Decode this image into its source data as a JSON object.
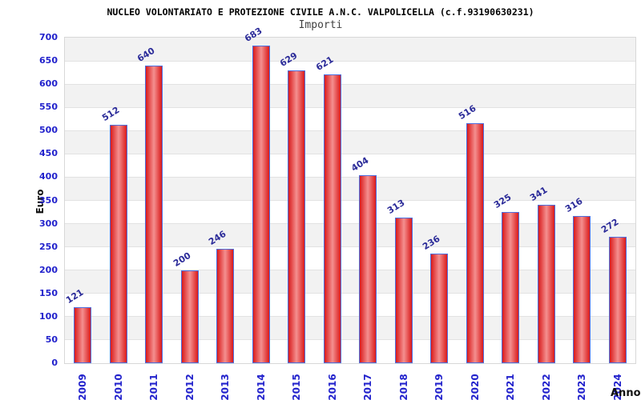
{
  "chart_data": {
    "type": "bar",
    "title": "NUCLEO VOLONTARIATO E PROTEZIONE CIVILE A.N.C. VALPOLICELLA (c.f.93190630231)",
    "subtitle": "Importi",
    "xlabel": "Anno",
    "ylabel": "Euro",
    "categories": [
      "2009",
      "2010",
      "2011",
      "2012",
      "2013",
      "2014",
      "2015",
      "2016",
      "2017",
      "2018",
      "2019",
      "2020",
      "2021",
      "2022",
      "2023",
      "2024"
    ],
    "values": [
      121,
      512,
      640,
      200,
      246,
      683,
      629,
      621,
      404,
      313,
      236,
      516,
      325,
      341,
      316,
      272
    ],
    "ylim": [
      0,
      700
    ],
    "ytick_step": 50,
    "grid": "horizontal-bands-alternating",
    "legend": "none",
    "value_labels_rotation_deg": -32,
    "x_labels_rotation_deg": -90,
    "colors": {
      "bar_edge_fill": "#da1a1a",
      "bar_center_fill": "#f49090",
      "bar_border": "#4d6fe0",
      "tick_label": "#2222cc",
      "value_label": "#2b2b99",
      "band_gray": "#f2f2f2",
      "band_white": "#ffffff",
      "gridline": "#e2e2e2",
      "plot_border": "#d8d8d8",
      "title_color": "#000000",
      "subtitle_color": "#404040"
    }
  }
}
